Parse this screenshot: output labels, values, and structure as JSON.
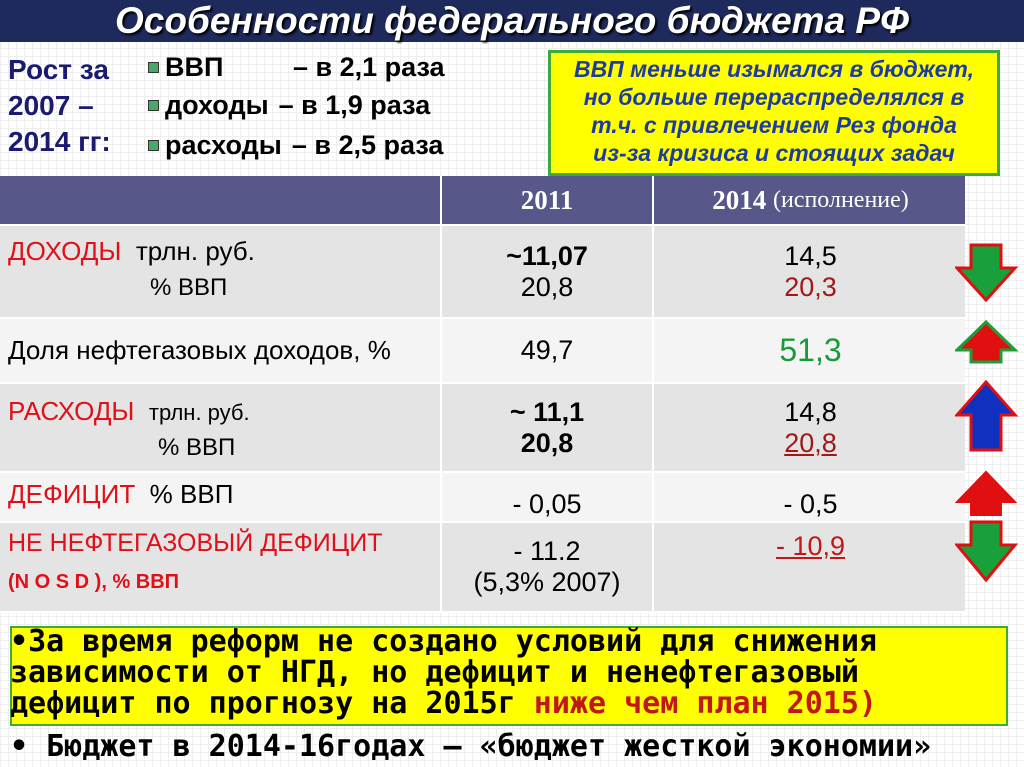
{
  "title": "Особенности федерального бюджета РФ",
  "growth": {
    "label": [
      "Рост за",
      "2007 –",
      "2014 гг:"
    ],
    "items": [
      {
        "name": "ВВП",
        "rate": "– в 2,1 раза"
      },
      {
        "name": "доходы",
        "rate": "– в 1,9 раза"
      },
      {
        "name": "расходы",
        "rate": "– в 2,5 раза"
      }
    ]
  },
  "note": [
    "ВВП меньше изымался в бюджет,",
    "но больше перераспределялся в",
    "т.ч. с привлечением Рез фонда",
    "из-за кризиса и стоящих задач"
  ],
  "table": {
    "header": {
      "col2011": "2011",
      "col2014": "2014",
      "col2014_note": "(исполнение)"
    },
    "rows": [
      {
        "label": "ДОХОДЫ",
        "unit": "трлн. руб.",
        "unit2": "% ВВП",
        "v2011": [
          "~11,07",
          "20,8"
        ],
        "v2014": [
          "14,5",
          "20,3"
        ]
      },
      {
        "label": "Доля нефтегазовых доходов, %",
        "v2011": [
          "49,7"
        ],
        "v2014": [
          "51,3"
        ]
      },
      {
        "label": "РАСХОДЫ",
        "unit": "трлн. руб.",
        "unit2": "% ВВП",
        "v2011": [
          "~ 11,1",
          "20,8"
        ],
        "v2014": [
          "14,8",
          "20,8"
        ]
      },
      {
        "label": "ДЕФИЦИТ",
        "unit": "% ВВП",
        "v2011": [
          "- 0,05"
        ],
        "v2014": [
          "- 0,5"
        ]
      },
      {
        "label": "НЕ НЕФТЕГАЗОВЫЙ ДЕФИЦИТ",
        "unit": "(N O S D ), % ВВП",
        "v2011": [
          "- 11.2",
          "(5,3% 2007)"
        ],
        "v2014": [
          "- 10,9"
        ]
      }
    ]
  },
  "bullets": [
    {
      "text": "За время реформ не создано условий для снижения зависимости от НГД, но дефицит и ненефтегазовый дефицит по прогнозу на 2015г",
      "highlight": "ниже чем план 2015)"
    },
    {
      "text": "Бюджет в 2014-16годах – «бюджет жесткой экономии»"
    }
  ]
}
